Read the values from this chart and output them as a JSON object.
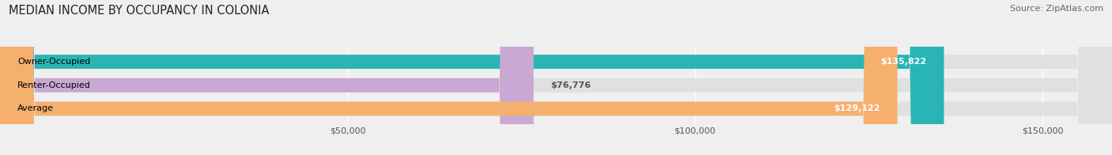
{
  "title": "MEDIAN INCOME BY OCCUPANCY IN COLONIA",
  "source": "Source: ZipAtlas.com",
  "categories": [
    "Owner-Occupied",
    "Renter-Occupied",
    "Average"
  ],
  "values": [
    135822,
    76776,
    129122
  ],
  "bar_colors": [
    "#2ab5b5",
    "#c9a8d4",
    "#f5b06e"
  ],
  "bar_labels": [
    "$135,822",
    "$76,776",
    "$129,122"
  ],
  "label_inside": [
    true,
    false,
    true
  ],
  "xlim": [
    0,
    160000
  ],
  "xticks": [
    50000,
    100000,
    150000
  ],
  "xticklabels": [
    "$50,000",
    "$100,000",
    "$150,000"
  ],
  "background_color": "#efefef",
  "bar_background": "#e0e0e0",
  "title_fontsize": 10.5,
  "source_fontsize": 8,
  "label_fontsize": 8,
  "tick_fontsize": 8
}
